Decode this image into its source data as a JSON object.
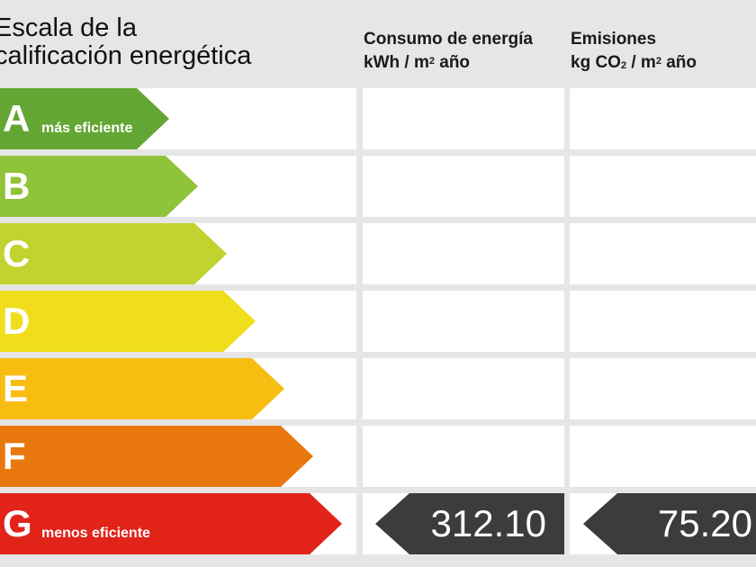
{
  "header": {
    "title_line1": "Escala de la",
    "title_line2": "calificación energética",
    "energy_label": "Consumo de energía",
    "energy_unit_prefix": "kWh / m",
    "energy_unit_sup": "2",
    "energy_unit_suffix": " año",
    "emissions_label": "Emisiones",
    "emissions_unit_prefix": "kg CO",
    "emissions_unit_sub": "2",
    "emissions_unit_mid": " / m",
    "emissions_unit_sup": "2",
    "emissions_unit_suffix": " año"
  },
  "ratings": [
    {
      "letter": "A",
      "desc": "más eficiente",
      "color": "#64a633"
    },
    {
      "letter": "B",
      "desc": "",
      "color": "#8fc33a"
    },
    {
      "letter": "C",
      "desc": "",
      "color": "#c2d22e"
    },
    {
      "letter": "D",
      "desc": "",
      "color": "#f0de1a"
    },
    {
      "letter": "E",
      "desc": "",
      "color": "#f7bd11"
    },
    {
      "letter": "F",
      "desc": "",
      "color": "#e8780e"
    },
    {
      "letter": "G",
      "desc": "menos eficiente",
      "color": "#e2231a"
    }
  ],
  "result": {
    "rating": "G",
    "energy_value": "312.10",
    "emissions_value": "75.20",
    "tag_color": "#3c3c3c"
  }
}
